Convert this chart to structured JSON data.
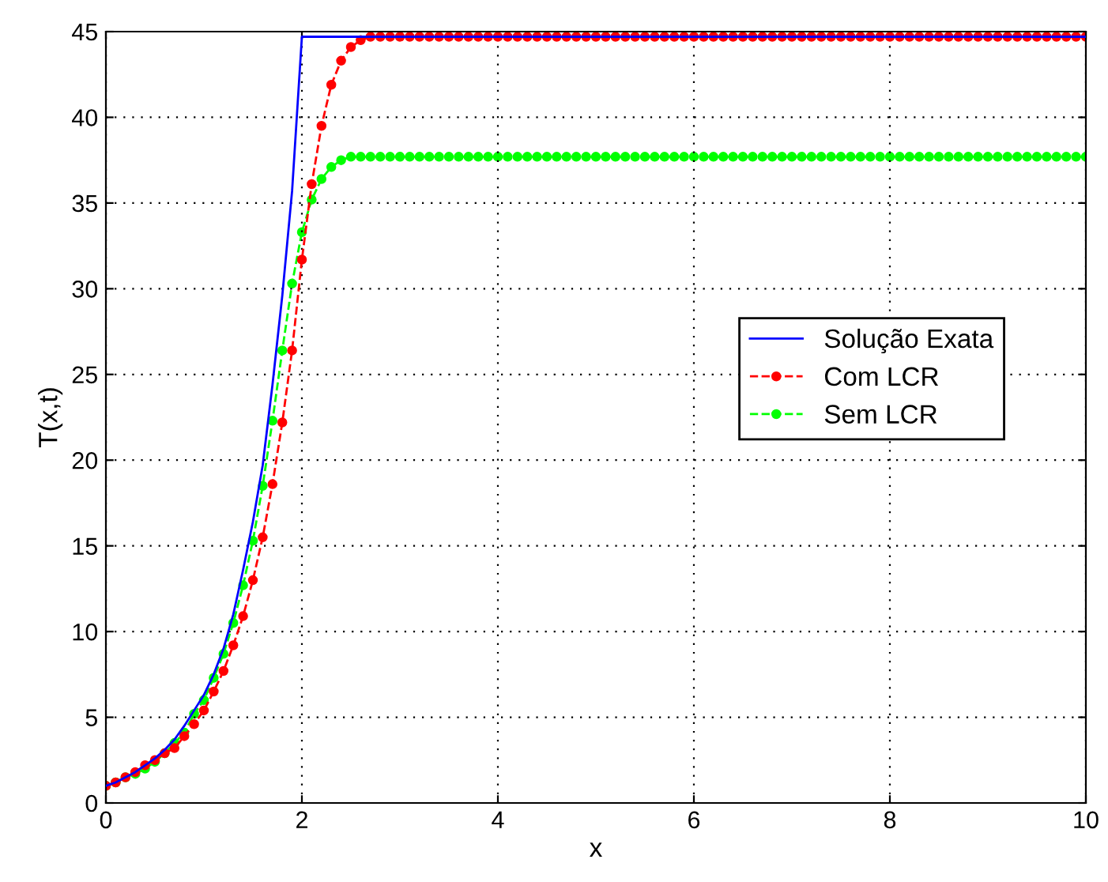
{
  "chart_data": {
    "type": "line",
    "xlabel": "x",
    "ylabel": "T(x,t)",
    "xlim": [
      0,
      10
    ],
    "ylim": [
      0,
      45
    ],
    "xticks": [
      0,
      2,
      4,
      6,
      8,
      10
    ],
    "yticks": [
      0,
      5,
      10,
      15,
      20,
      25,
      30,
      35,
      40,
      45
    ],
    "grid": true,
    "legend": "right",
    "series": [
      {
        "name": "Solução Exata",
        "color": "#0000ff",
        "line_style": "solid",
        "marker": "none",
        "x": [
          0,
          0.1,
          0.2,
          0.3,
          0.4,
          0.5,
          0.6,
          0.7,
          0.8,
          0.9,
          1.0,
          1.1,
          1.2,
          1.3,
          1.4,
          1.5,
          1.6,
          1.7,
          1.8,
          1.9,
          2.0,
          10
        ],
        "values": [
          1.0,
          1.2,
          1.5,
          1.8,
          2.2,
          2.6,
          3.1,
          3.7,
          4.5,
          5.4,
          6.3,
          7.5,
          9.0,
          11.0,
          13.6,
          16.4,
          19.7,
          24.4,
          29.6,
          35.7,
          44.7,
          44.7
        ]
      },
      {
        "name": "Com LCR",
        "color": "#ff0000",
        "line_style": "dashed",
        "marker": "circle",
        "values": [
          1.0,
          1.2,
          1.5,
          1.8,
          2.2,
          2.5,
          2.9,
          3.2,
          3.9,
          4.6,
          5.4,
          6.5,
          7.7,
          9.2,
          10.9,
          13.0,
          15.5,
          18.6,
          22.2,
          26.4,
          31.7,
          36.1,
          39.5,
          41.9,
          43.3,
          44.1,
          44.5,
          44.7,
          44.7,
          44.7,
          44.7,
          44.7,
          44.7,
          44.7,
          44.7,
          44.7,
          44.7,
          44.7,
          44.7,
          44.7,
          44.7,
          44.7,
          44.7,
          44.7,
          44.7,
          44.7,
          44.7,
          44.7,
          44.7,
          44.7,
          44.7,
          44.7,
          44.7,
          44.7,
          44.7,
          44.7,
          44.7,
          44.7,
          44.7,
          44.7,
          44.7,
          44.7,
          44.7,
          44.7,
          44.7,
          44.7,
          44.7,
          44.7,
          44.7,
          44.7,
          44.7,
          44.7,
          44.7,
          44.7,
          44.7,
          44.7,
          44.7,
          44.7,
          44.7,
          44.7,
          44.7,
          44.7,
          44.7,
          44.7,
          44.7,
          44.7,
          44.7,
          44.7,
          44.7,
          44.7,
          44.7,
          44.7,
          44.7,
          44.7,
          44.7,
          44.7,
          44.7,
          44.7,
          44.7,
          44.7,
          44.7
        ]
      },
      {
        "name": "Sem LCR",
        "color": "#00ff00",
        "line_style": "dashed",
        "marker": "circle",
        "values": [
          1.0,
          1.2,
          1.5,
          1.7,
          2.0,
          2.4,
          2.9,
          3.5,
          4.1,
          5.2,
          6.0,
          7.3,
          8.7,
          10.5,
          12.7,
          15.3,
          18.5,
          22.3,
          26.4,
          30.3,
          33.3,
          35.2,
          36.4,
          37.1,
          37.5,
          37.7,
          37.7,
          37.7,
          37.7,
          37.7,
          37.7,
          37.7,
          37.7,
          37.7,
          37.7,
          37.7,
          37.7,
          37.7,
          37.7,
          37.7,
          37.7,
          37.7,
          37.7,
          37.7,
          37.7,
          37.7,
          37.7,
          37.7,
          37.7,
          37.7,
          37.7,
          37.7,
          37.7,
          37.7,
          37.7,
          37.7,
          37.7,
          37.7,
          37.7,
          37.7,
          37.7,
          37.7,
          37.7,
          37.7,
          37.7,
          37.7,
          37.7,
          37.7,
          37.7,
          37.7,
          37.7,
          37.7,
          37.7,
          37.7,
          37.7,
          37.7,
          37.7,
          37.7,
          37.7,
          37.7,
          37.7,
          37.7,
          37.7,
          37.7,
          37.7,
          37.7,
          37.7,
          37.7,
          37.7,
          37.7,
          37.7,
          37.7,
          37.7,
          37.7,
          37.7,
          37.7,
          37.7,
          37.7,
          37.7,
          37.7,
          37.7
        ]
      }
    ],
    "x": [
      0,
      0.1,
      0.2,
      0.3,
      0.4,
      0.5,
      0.6,
      0.7,
      0.8,
      0.9,
      1.0,
      1.1,
      1.2,
      1.3,
      1.4,
      1.5,
      1.6,
      1.7,
      1.8,
      1.9,
      2.0,
      2.1,
      2.2,
      2.3,
      2.4,
      2.5,
      2.6,
      2.7,
      2.8,
      2.9,
      3.0,
      3.1,
      3.2,
      3.3,
      3.4,
      3.5,
      3.6,
      3.7,
      3.8,
      3.9,
      4.0,
      4.1,
      4.2,
      4.3,
      4.4,
      4.5,
      4.6,
      4.7,
      4.8,
      4.9,
      5.0,
      5.1,
      5.2,
      5.3,
      5.4,
      5.5,
      5.6,
      5.7,
      5.8,
      5.9,
      6.0,
      6.1,
      6.2,
      6.3,
      6.4,
      6.5,
      6.6,
      6.7,
      6.8,
      6.9,
      7.0,
      7.1,
      7.2,
      7.3,
      7.4,
      7.5,
      7.6,
      7.7,
      7.8,
      7.9,
      8.0,
      8.1,
      8.2,
      8.3,
      8.4,
      8.5,
      8.6,
      8.7,
      8.8,
      8.9,
      9.0,
      9.1,
      9.2,
      9.3,
      9.4,
      9.5,
      9.6,
      9.7,
      9.8,
      9.9,
      10.0
    ]
  }
}
